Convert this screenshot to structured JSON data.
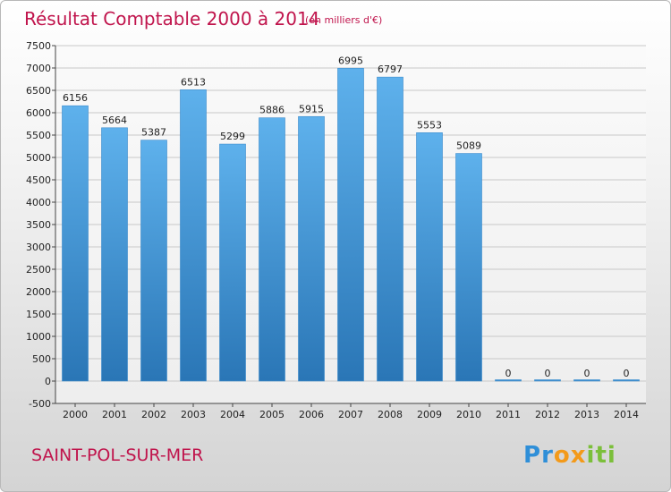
{
  "chart_data": {
    "type": "bar",
    "title": "Résultat Comptable 2000 à 2014",
    "subtitle": "(en milliers d'€)",
    "categories": [
      "2000",
      "2001",
      "2002",
      "2003",
      "2004",
      "2005",
      "2006",
      "2007",
      "2008",
      "2009",
      "2010",
      "2011",
      "2012",
      "2013",
      "2014"
    ],
    "values": [
      6156,
      5664,
      5387,
      6513,
      5299,
      5886,
      5915,
      6995,
      6797,
      5553,
      5089,
      0,
      0,
      0,
      0
    ],
    "ylim": [
      -500,
      7500
    ],
    "yticks": [
      -500,
      0,
      500,
      1000,
      1500,
      2000,
      2500,
      3000,
      3500,
      4000,
      4500,
      5000,
      5500,
      6000,
      6500,
      7000,
      7500
    ],
    "grid": true,
    "xlabel": "",
    "ylabel": "",
    "colors": {
      "bar_top": "#5aaeea",
      "bar_bottom": "#2a78b8",
      "title": "#c0144c"
    }
  },
  "footer": {
    "city": "SAINT-POL-SUR-MER",
    "logo_text": "Proxiti"
  }
}
